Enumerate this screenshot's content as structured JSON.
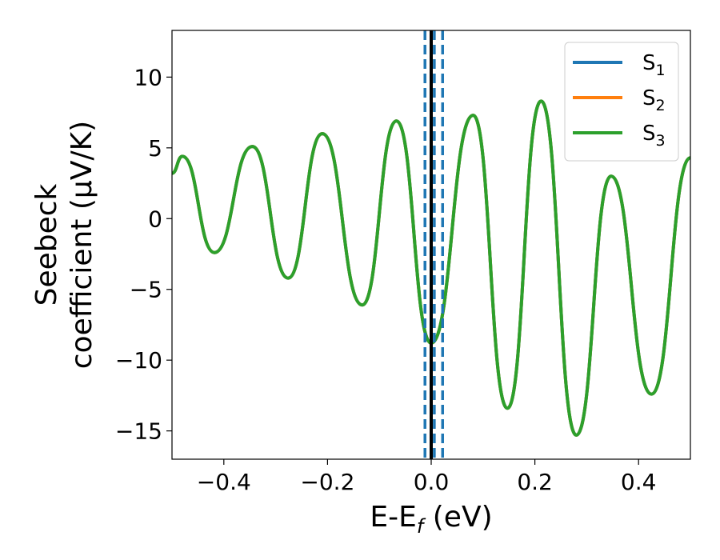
{
  "chart_data": {
    "type": "line",
    "xlabel": {
      "main": "E-E",
      "sub": "f",
      "unit": " (eV)"
    },
    "ylabel": {
      "line1": "Seebeck",
      "line2": "coefficient  (μV/K)"
    },
    "xlim": [
      -0.5,
      0.5
    ],
    "ylim": [
      -17,
      13.3
    ],
    "xticks": [
      -0.4,
      -0.2,
      0.0,
      0.2,
      0.4
    ],
    "xtick_labels": [
      "−0.4",
      "−0.2",
      "0.0",
      "0.2",
      "0.4"
    ],
    "yticks": [
      10,
      5,
      0,
      -5,
      -10,
      -15
    ],
    "ytick_labels": [
      "10",
      "5",
      "0",
      "−5",
      "−10",
      "−15"
    ],
    "grid": false,
    "legend_position": "top-right",
    "series": [
      {
        "name": "S",
        "sub": "1",
        "color": "#1f77b4"
      },
      {
        "name": "S",
        "sub": "2",
        "color": "#ff7f0e"
      },
      {
        "name": "S",
        "sub": "3",
        "color": "#2ca02c"
      }
    ],
    "curve_points": {
      "x": [
        -0.5,
        -0.48,
        -0.418,
        -0.345,
        -0.276,
        -0.21,
        -0.133,
        -0.067,
        0.0,
        0.081,
        0.147,
        0.212,
        0.28,
        0.347,
        0.425,
        0.5
      ],
      "y": [
        3.2,
        4.4,
        -2.4,
        5.1,
        -4.2,
        6.0,
        -6.1,
        6.9,
        -8.8,
        7.3,
        -13.4,
        8.3,
        -15.3,
        3.0,
        -12.4,
        4.3
      ]
    },
    "vertical_lines": [
      {
        "x": 0.0,
        "style": "solid",
        "color": "#000000"
      },
      {
        "x": -0.012,
        "style": "dashed",
        "color": "#1f77b4"
      },
      {
        "x": 0.006,
        "style": "dashed",
        "color": "#1f77b4"
      },
      {
        "x": 0.022,
        "style": "dashed",
        "color": "#1f77b4"
      }
    ]
  }
}
